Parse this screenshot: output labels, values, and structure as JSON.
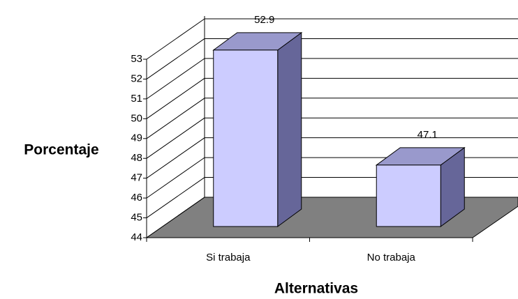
{
  "chart_data": {
    "type": "bar3d",
    "categories": [
      "Si trabaja",
      "No trabaja"
    ],
    "values": [
      52.9,
      47.1
    ],
    "ylabel": "Porcentaje",
    "xlabel": "Alternativas",
    "ylim": [
      44,
      53
    ],
    "yticks": [
      44,
      45,
      46,
      47,
      48,
      49,
      50,
      51,
      52,
      53
    ],
    "color": "#ccccff",
    "grid": true
  }
}
